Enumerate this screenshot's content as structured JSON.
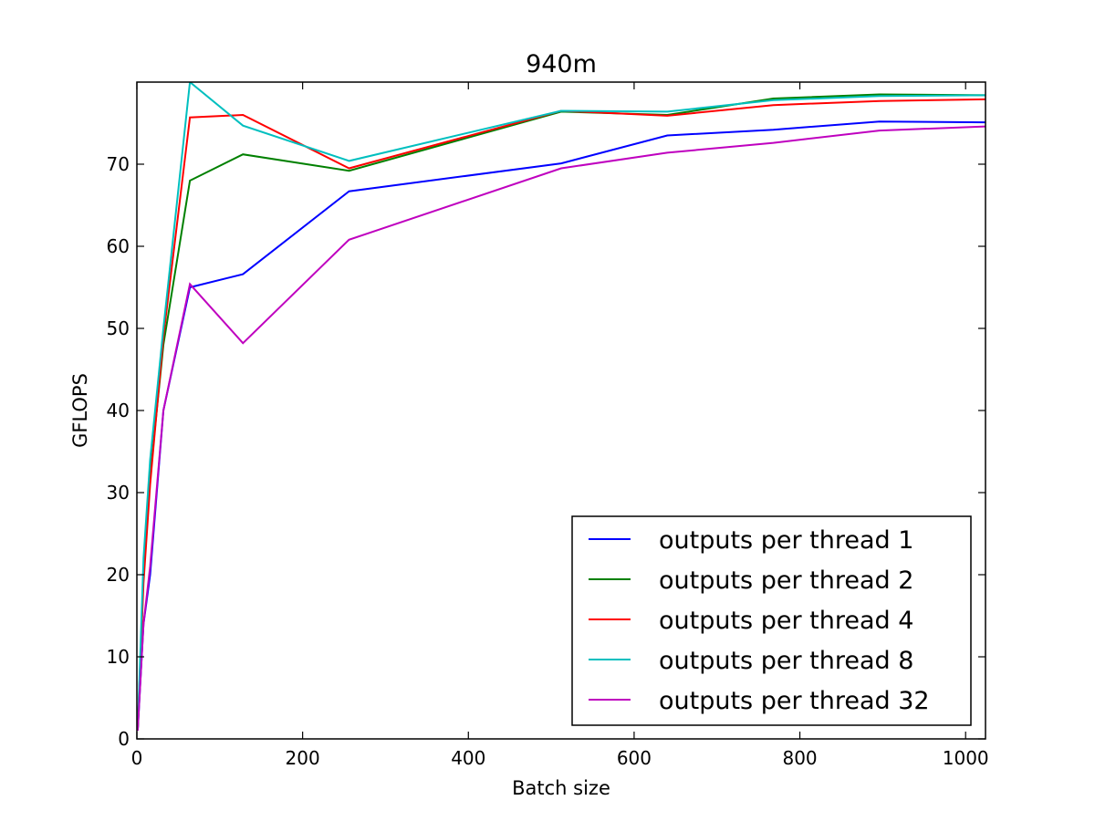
{
  "chart_data": {
    "type": "line",
    "title": "940m",
    "xlabel": "Batch size",
    "ylabel": "GFLOPS",
    "xlim": [
      0,
      1024
    ],
    "ylim": [
      0,
      80
    ],
    "xticks": [
      0,
      200,
      400,
      600,
      800,
      1000
    ],
    "yticks": [
      0,
      10,
      20,
      30,
      40,
      50,
      60,
      70
    ],
    "grid": false,
    "legend_position": "bottom-right",
    "x": [
      1,
      8,
      16,
      32,
      64,
      128,
      256,
      512,
      640,
      768,
      896,
      1024
    ],
    "series": [
      {
        "name": "outputs per thread 1",
        "color": "#0000ff",
        "values": [
          1,
          14,
          20,
          40,
          55,
          56.6,
          66.7,
          70.1,
          73.5,
          74.2,
          75.2,
          75.1
        ]
      },
      {
        "name": "outputs per thread 2",
        "color": "#008000",
        "values": [
          1,
          20,
          32,
          48,
          68,
          71.2,
          69.2,
          76.4,
          76,
          78,
          78.5,
          78.4
        ]
      },
      {
        "name": "outputs per thread 4",
        "color": "#ff0000",
        "values": [
          1,
          19,
          31,
          49,
          75.7,
          76,
          69.5,
          76.5,
          75.9,
          77.2,
          77.7,
          77.9
        ]
      },
      {
        "name": "outputs per thread 8",
        "color": "#00bfbf",
        "values": [
          1,
          22,
          34,
          50,
          80,
          74.7,
          70.4,
          76.5,
          76.4,
          77.8,
          78.3,
          78.4
        ]
      },
      {
        "name": "outputs per thread 32",
        "color": "#bf00bf",
        "values": [
          1,
          14,
          21,
          40,
          55.4,
          48.2,
          60.8,
          69.5,
          71.4,
          72.6,
          74.1,
          74.6
        ]
      }
    ]
  }
}
